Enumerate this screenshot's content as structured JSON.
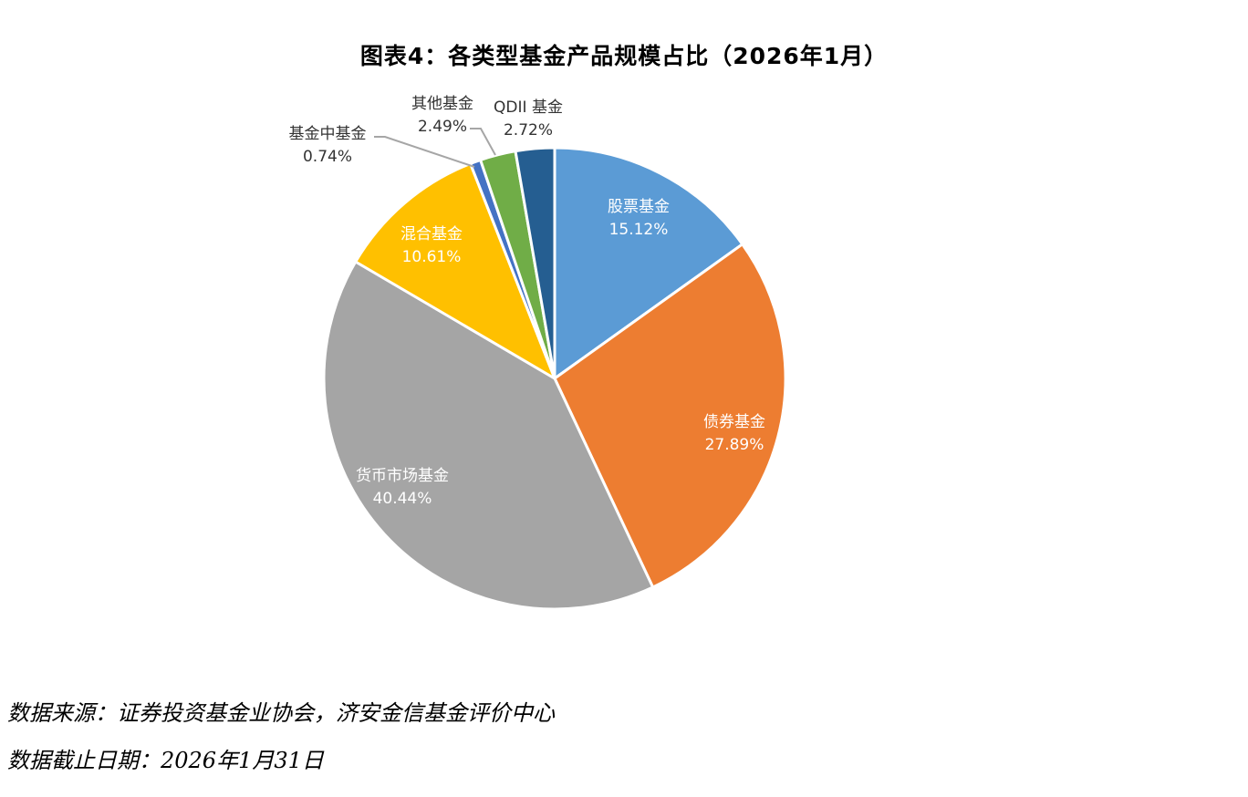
{
  "title": "图表4：各类型基金产品规模占比（2026年1月）",
  "chart_data": {
    "type": "pie",
    "title": "图表4：各类型基金产品规模占比（2026年1月）",
    "start_angle_deg": 0,
    "direction": "clockwise",
    "categories": [
      "股票基金",
      "债券基金",
      "货币市场基金",
      "混合基金",
      "基金中基金",
      "其他基金",
      "QDII 基金"
    ],
    "values": [
      15.12,
      27.89,
      40.44,
      10.61,
      0.74,
      2.49,
      2.72
    ],
    "unit": "%",
    "colors": [
      "#5b9bd5",
      "#ed7d31",
      "#a5a5a5",
      "#ffc000",
      "#4472c4",
      "#70ad47",
      "#255e91"
    ],
    "labels": [
      {
        "name": "股票基金",
        "value": "15.12%"
      },
      {
        "name": "债券基金",
        "value": "27.89%"
      },
      {
        "name": "货币市场基金",
        "value": "40.44%"
      },
      {
        "name": "混合基金",
        "value": "10.61%"
      },
      {
        "name": "基金中基金",
        "value": "0.74%"
      },
      {
        "name": "其他基金",
        "value": "2.49%"
      },
      {
        "name": "QDII 基金",
        "value": "2.72%"
      }
    ],
    "legend": "none (data labels with category names)"
  },
  "footer": {
    "source": "数据来源：证券投资基金业协会，济安金信基金评价中心",
    "date": "数据截止日期：2026年1月31日"
  }
}
